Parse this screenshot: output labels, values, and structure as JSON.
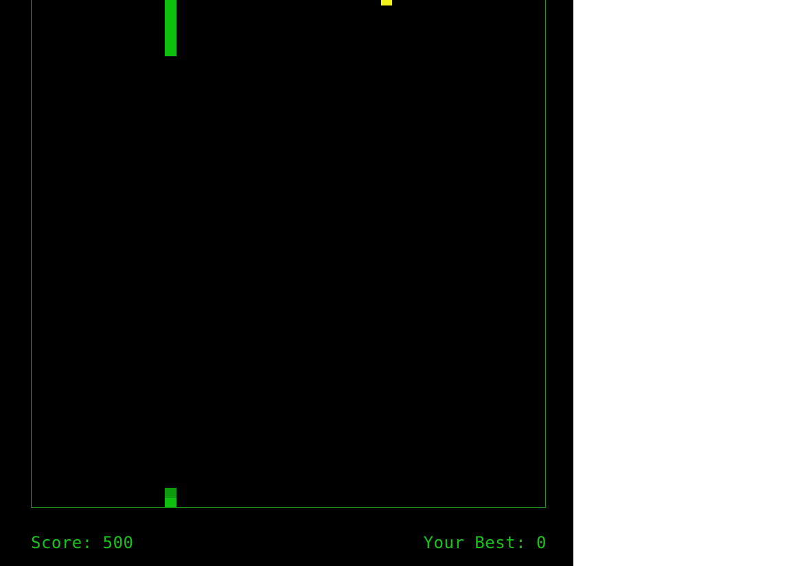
{
  "game": {
    "colors": {
      "background": "#000000",
      "border": "#1f9b1f",
      "snake": "#10c010",
      "snake_dim": "#0f9a0f",
      "food": "#f2f21a",
      "hud_text": "#18c218"
    },
    "hud": {
      "score_label": "Score:",
      "score_value": "500",
      "score_text": "Score: 500",
      "best_label": "Your Best:",
      "best_value": "0",
      "best_text": "Your Best: 0"
    }
  }
}
